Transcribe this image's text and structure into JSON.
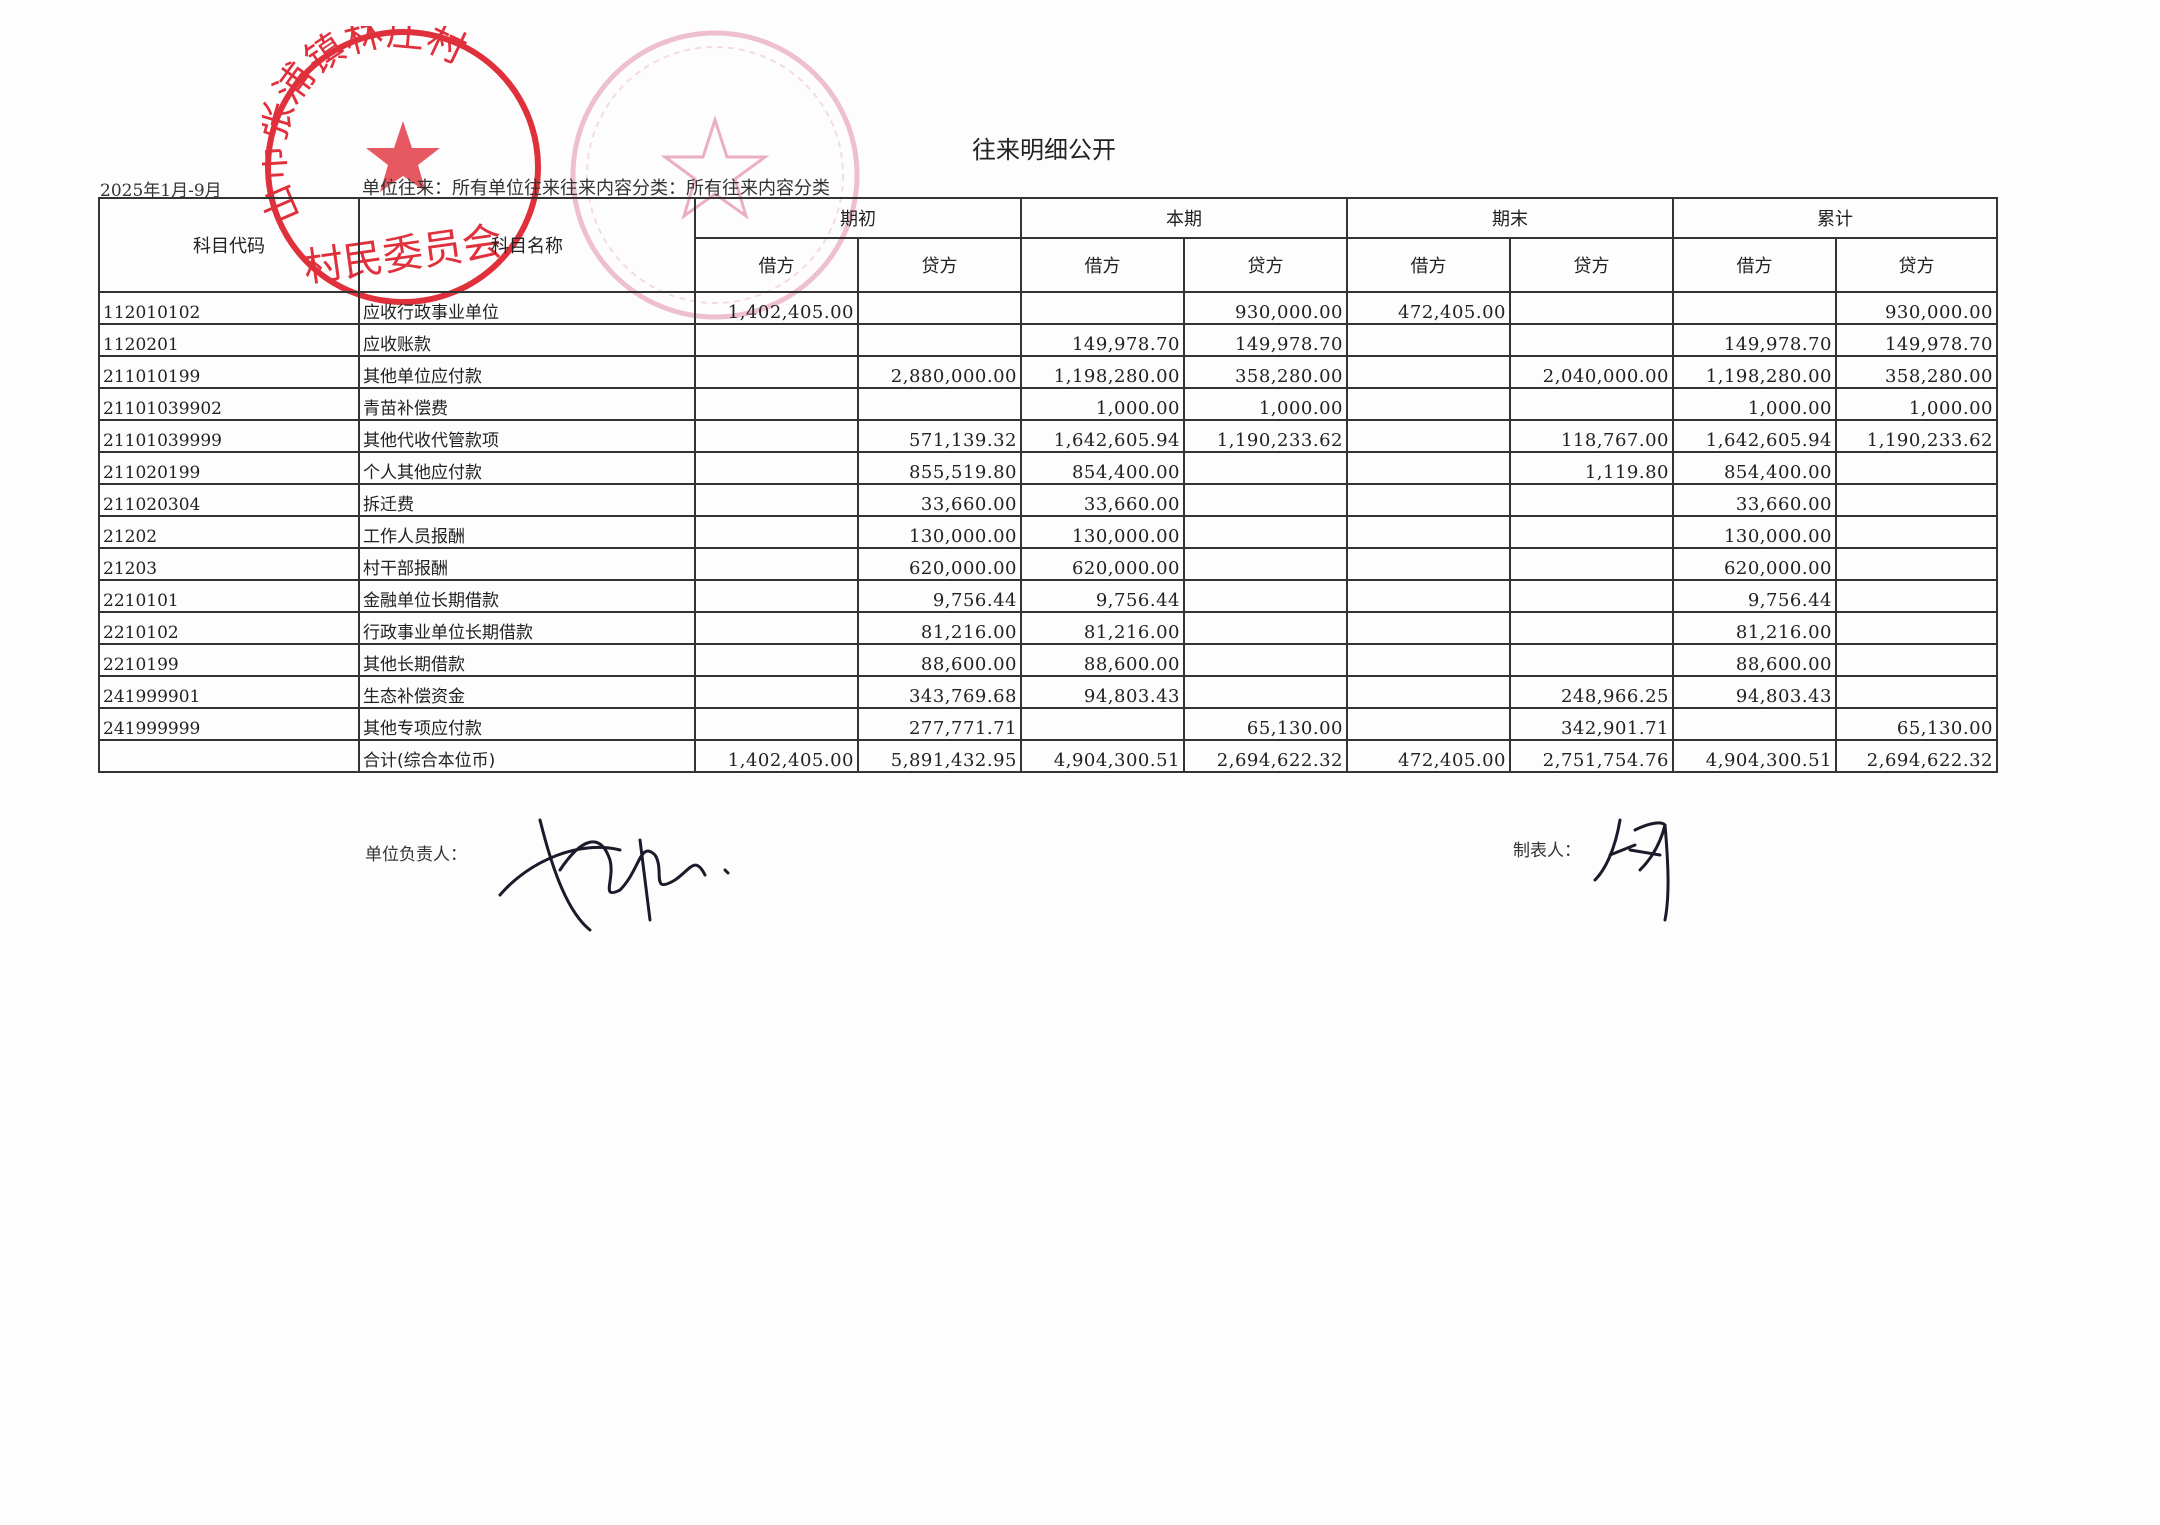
{
  "title": "往来明细公开",
  "period": "2025年1月-9月",
  "filter": "单位往来：所有单位往来往来内容分类：所有往来内容分类",
  "headers": {
    "code": "科目代码",
    "name": "科目名称",
    "groups": [
      "期初",
      "本期",
      "期末",
      "累计"
    ],
    "debit": "借方",
    "credit": "贷方"
  },
  "rows": [
    {
      "code": "112010102",
      "name": "应收行政事业单位",
      "v": [
        "1,402,405.00",
        "",
        "",
        "930,000.00",
        "472,405.00",
        "",
        "",
        "930,000.00"
      ]
    },
    {
      "code": "1120201",
      "name": "应收账款",
      "v": [
        "",
        "",
        "149,978.70",
        "149,978.70",
        "",
        "",
        "149,978.70",
        "149,978.70"
      ]
    },
    {
      "code": "211010199",
      "name": "其他单位应付款",
      "v": [
        "",
        "2,880,000.00",
        "1,198,280.00",
        "358,280.00",
        "",
        "2,040,000.00",
        "1,198,280.00",
        "358,280.00"
      ]
    },
    {
      "code": "21101039902",
      "name": "青苗补偿费",
      "v": [
        "",
        "",
        "1,000.00",
        "1,000.00",
        "",
        "",
        "1,000.00",
        "1,000.00"
      ]
    },
    {
      "code": "21101039999",
      "name": "其他代收代管款项",
      "v": [
        "",
        "571,139.32",
        "1,642,605.94",
        "1,190,233.62",
        "",
        "118,767.00",
        "1,642,605.94",
        "1,190,233.62"
      ]
    },
    {
      "code": "211020199",
      "name": "个人其他应付款",
      "v": [
        "",
        "855,519.80",
        "854,400.00",
        "",
        "",
        "1,119.80",
        "854,400.00",
        ""
      ]
    },
    {
      "code": "211020304",
      "name": "拆迁费",
      "v": [
        "",
        "33,660.00",
        "33,660.00",
        "",
        "",
        "",
        "33,660.00",
        ""
      ]
    },
    {
      "code": "21202",
      "name": "工作人员报酬",
      "v": [
        "",
        "130,000.00",
        "130,000.00",
        "",
        "",
        "",
        "130,000.00",
        ""
      ]
    },
    {
      "code": "21203",
      "name": "村干部报酬",
      "v": [
        "",
        "620,000.00",
        "620,000.00",
        "",
        "",
        "",
        "620,000.00",
        ""
      ]
    },
    {
      "code": "2210101",
      "name": "金融单位长期借款",
      "v": [
        "",
        "9,756.44",
        "9,756.44",
        "",
        "",
        "",
        "9,756.44",
        ""
      ]
    },
    {
      "code": "2210102",
      "name": "行政事业单位长期借款",
      "v": [
        "",
        "81,216.00",
        "81,216.00",
        "",
        "",
        "",
        "81,216.00",
        ""
      ]
    },
    {
      "code": "2210199",
      "name": "其他长期借款",
      "v": [
        "",
        "88,600.00",
        "88,600.00",
        "",
        "",
        "",
        "88,600.00",
        ""
      ]
    },
    {
      "code": "241999901",
      "name": "生态补偿资金",
      "v": [
        "",
        "343,769.68",
        "94,803.43",
        "",
        "",
        "248,966.25",
        "94,803.43",
        ""
      ]
    },
    {
      "code": "241999999",
      "name": "其他专项应付款",
      "v": [
        "",
        "277,771.71",
        "",
        "65,130.00",
        "",
        "342,901.71",
        "",
        "65,130.00"
      ]
    },
    {
      "code": "",
      "name": "合计(综合本位币)",
      "v": [
        "1,402,405.00",
        "5,891,432.95",
        "4,904,300.51",
        "2,694,622.32",
        "472,405.00",
        "2,751,754.76",
        "4,904,300.51",
        "2,694,622.32"
      ]
    }
  ],
  "signatures": {
    "unit_head_label": "单位负责人：",
    "preparer_label": "制表人："
  },
  "stamps": {
    "red_stamp_text": "山市张浦镇林庄村村民委员会",
    "red_color": "#e0303c",
    "faint_color": "#e8a8b8"
  }
}
